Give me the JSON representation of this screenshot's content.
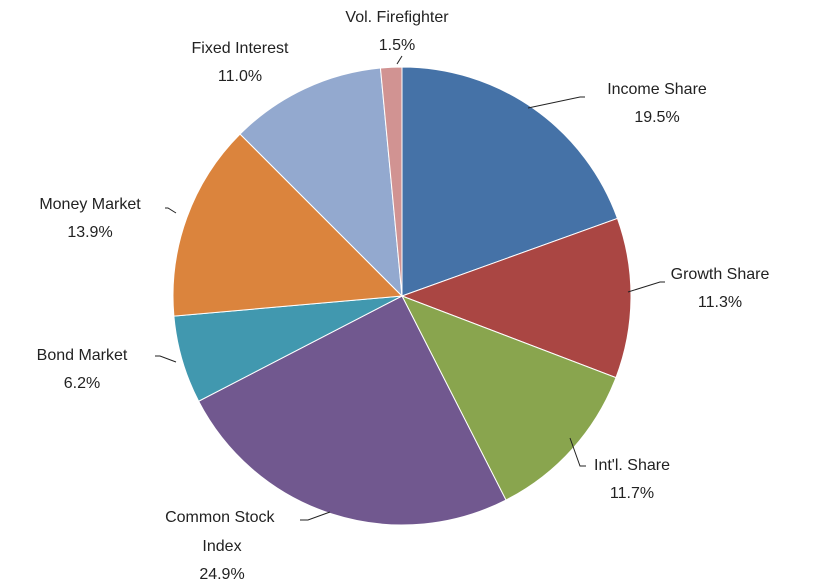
{
  "chart_data": {
    "type": "pie",
    "categories": [
      "Income Share",
      "Growth Share",
      "Int'l. Share",
      "Common Stock Index",
      "Bond Market",
      "Money Market",
      "Fixed Interest",
      "Vol. Firefighter"
    ],
    "values": [
      19.5,
      11.3,
      11.7,
      24.9,
      6.2,
      13.9,
      11.0,
      1.5
    ],
    "value_labels": [
      "19.5%",
      "11.3%",
      "11.7%",
      "24.9%",
      "6.2%",
      "13.9%",
      "11.0%",
      "1.5%"
    ],
    "colors": [
      "#4572a7",
      "#aa4643",
      "#89a54e",
      "#71588f",
      "#4198af",
      "#db843d",
      "#93a9cf",
      "#d19392"
    ]
  }
}
